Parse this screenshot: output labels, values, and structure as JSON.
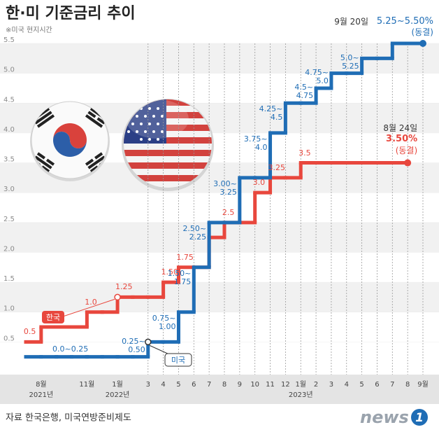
{
  "chart_data": {
    "type": "step",
    "title": "한·미 기준금리 추이",
    "subtitle": "※미국 현지시간",
    "categories": [
      null,
      "8월",
      null,
      null,
      "11월",
      null,
      "1월",
      null,
      "3",
      "4",
      "5",
      "6",
      "7",
      "8",
      "9",
      "10",
      "11",
      "12",
      "1월",
      "2",
      "3",
      "4",
      "5",
      "6",
      "7",
      "8",
      "9월"
    ],
    "year_labels": [
      null,
      "2021년",
      null,
      null,
      null,
      null,
      "2022년",
      null,
      null,
      null,
      null,
      null,
      null,
      null,
      null,
      null,
      null,
      null,
      "2023년",
      null,
      null,
      null,
      null,
      null,
      null,
      null,
      null
    ],
    "ylim": [
      0,
      5.5
    ],
    "yticks": [
      0.5,
      {
        "value": 1,
        "label": "1.0"
      },
      1.5,
      {
        "value": 2,
        "label": "2.0"
      },
      2.5,
      {
        "value": 3,
        "label": "3.0"
      },
      3.5,
      {
        "value": 4,
        "label": "4.0"
      },
      4.5,
      {
        "value": 5,
        "label": "5.0"
      },
      5.5
    ],
    "stripes": true,
    "series": [
      {
        "name": "한국",
        "color": "#e8473d",
        "values": [
          0.5,
          0.75,
          0.75,
          0.75,
          1.0,
          1.0,
          1.25,
          1.25,
          1.25,
          1.5,
          1.75,
          1.75,
          2.25,
          2.5,
          2.5,
          3.0,
          3.25,
          3.25,
          3.5,
          3.5,
          3.5,
          3.5,
          3.5,
          3.5,
          3.5,
          3.5,
          null
        ],
        "value_labels": [
          "0.5",
          null,
          null,
          null,
          "1.0",
          null,
          "1.25",
          null,
          null,
          "1.50",
          "1.75",
          null,
          null,
          "2.5",
          null,
          "3.0",
          "3.25",
          null,
          "3.5",
          null,
          null,
          null,
          null,
          null,
          null,
          null,
          null
        ],
        "end_note": {
          "date": "8월 24일",
          "rate": "3.50%",
          "status": "(동결)"
        }
      },
      {
        "name": "미국",
        "color": "#1f6db5",
        "values": [
          0.25,
          0.25,
          0.25,
          0.25,
          0.25,
          0.25,
          0.25,
          0.25,
          0.5,
          0.5,
          1.0,
          1.75,
          2.5,
          2.5,
          3.25,
          3.25,
          4.0,
          4.5,
          4.5,
          4.75,
          5.0,
          5.0,
          5.25,
          5.25,
          5.5,
          5.5,
          5.5
        ],
        "value_labels": [
          "0.0~0.25",
          null,
          null,
          null,
          null,
          null,
          null,
          null,
          "0.25~\n0.50",
          null,
          "0.75~\n1.00",
          "1.50~\n1.75",
          "2.50~\n2.25",
          null,
          "3.00~\n3.25",
          null,
          "3.75~\n4.0",
          "4.25~\n4.5",
          null,
          "4.5~\n4.75",
          "4.75~\n5.0",
          null,
          "5.0~\n5.25",
          null,
          null,
          null,
          null
        ],
        "end_note": {
          "date": "9월 20일",
          "rate": "5.25~5.50%",
          "status": "(동결)"
        }
      }
    ]
  },
  "source": "자료 한국은행, 미국연방준비제도",
  "logo": {
    "text": "news",
    "mark": "1"
  }
}
